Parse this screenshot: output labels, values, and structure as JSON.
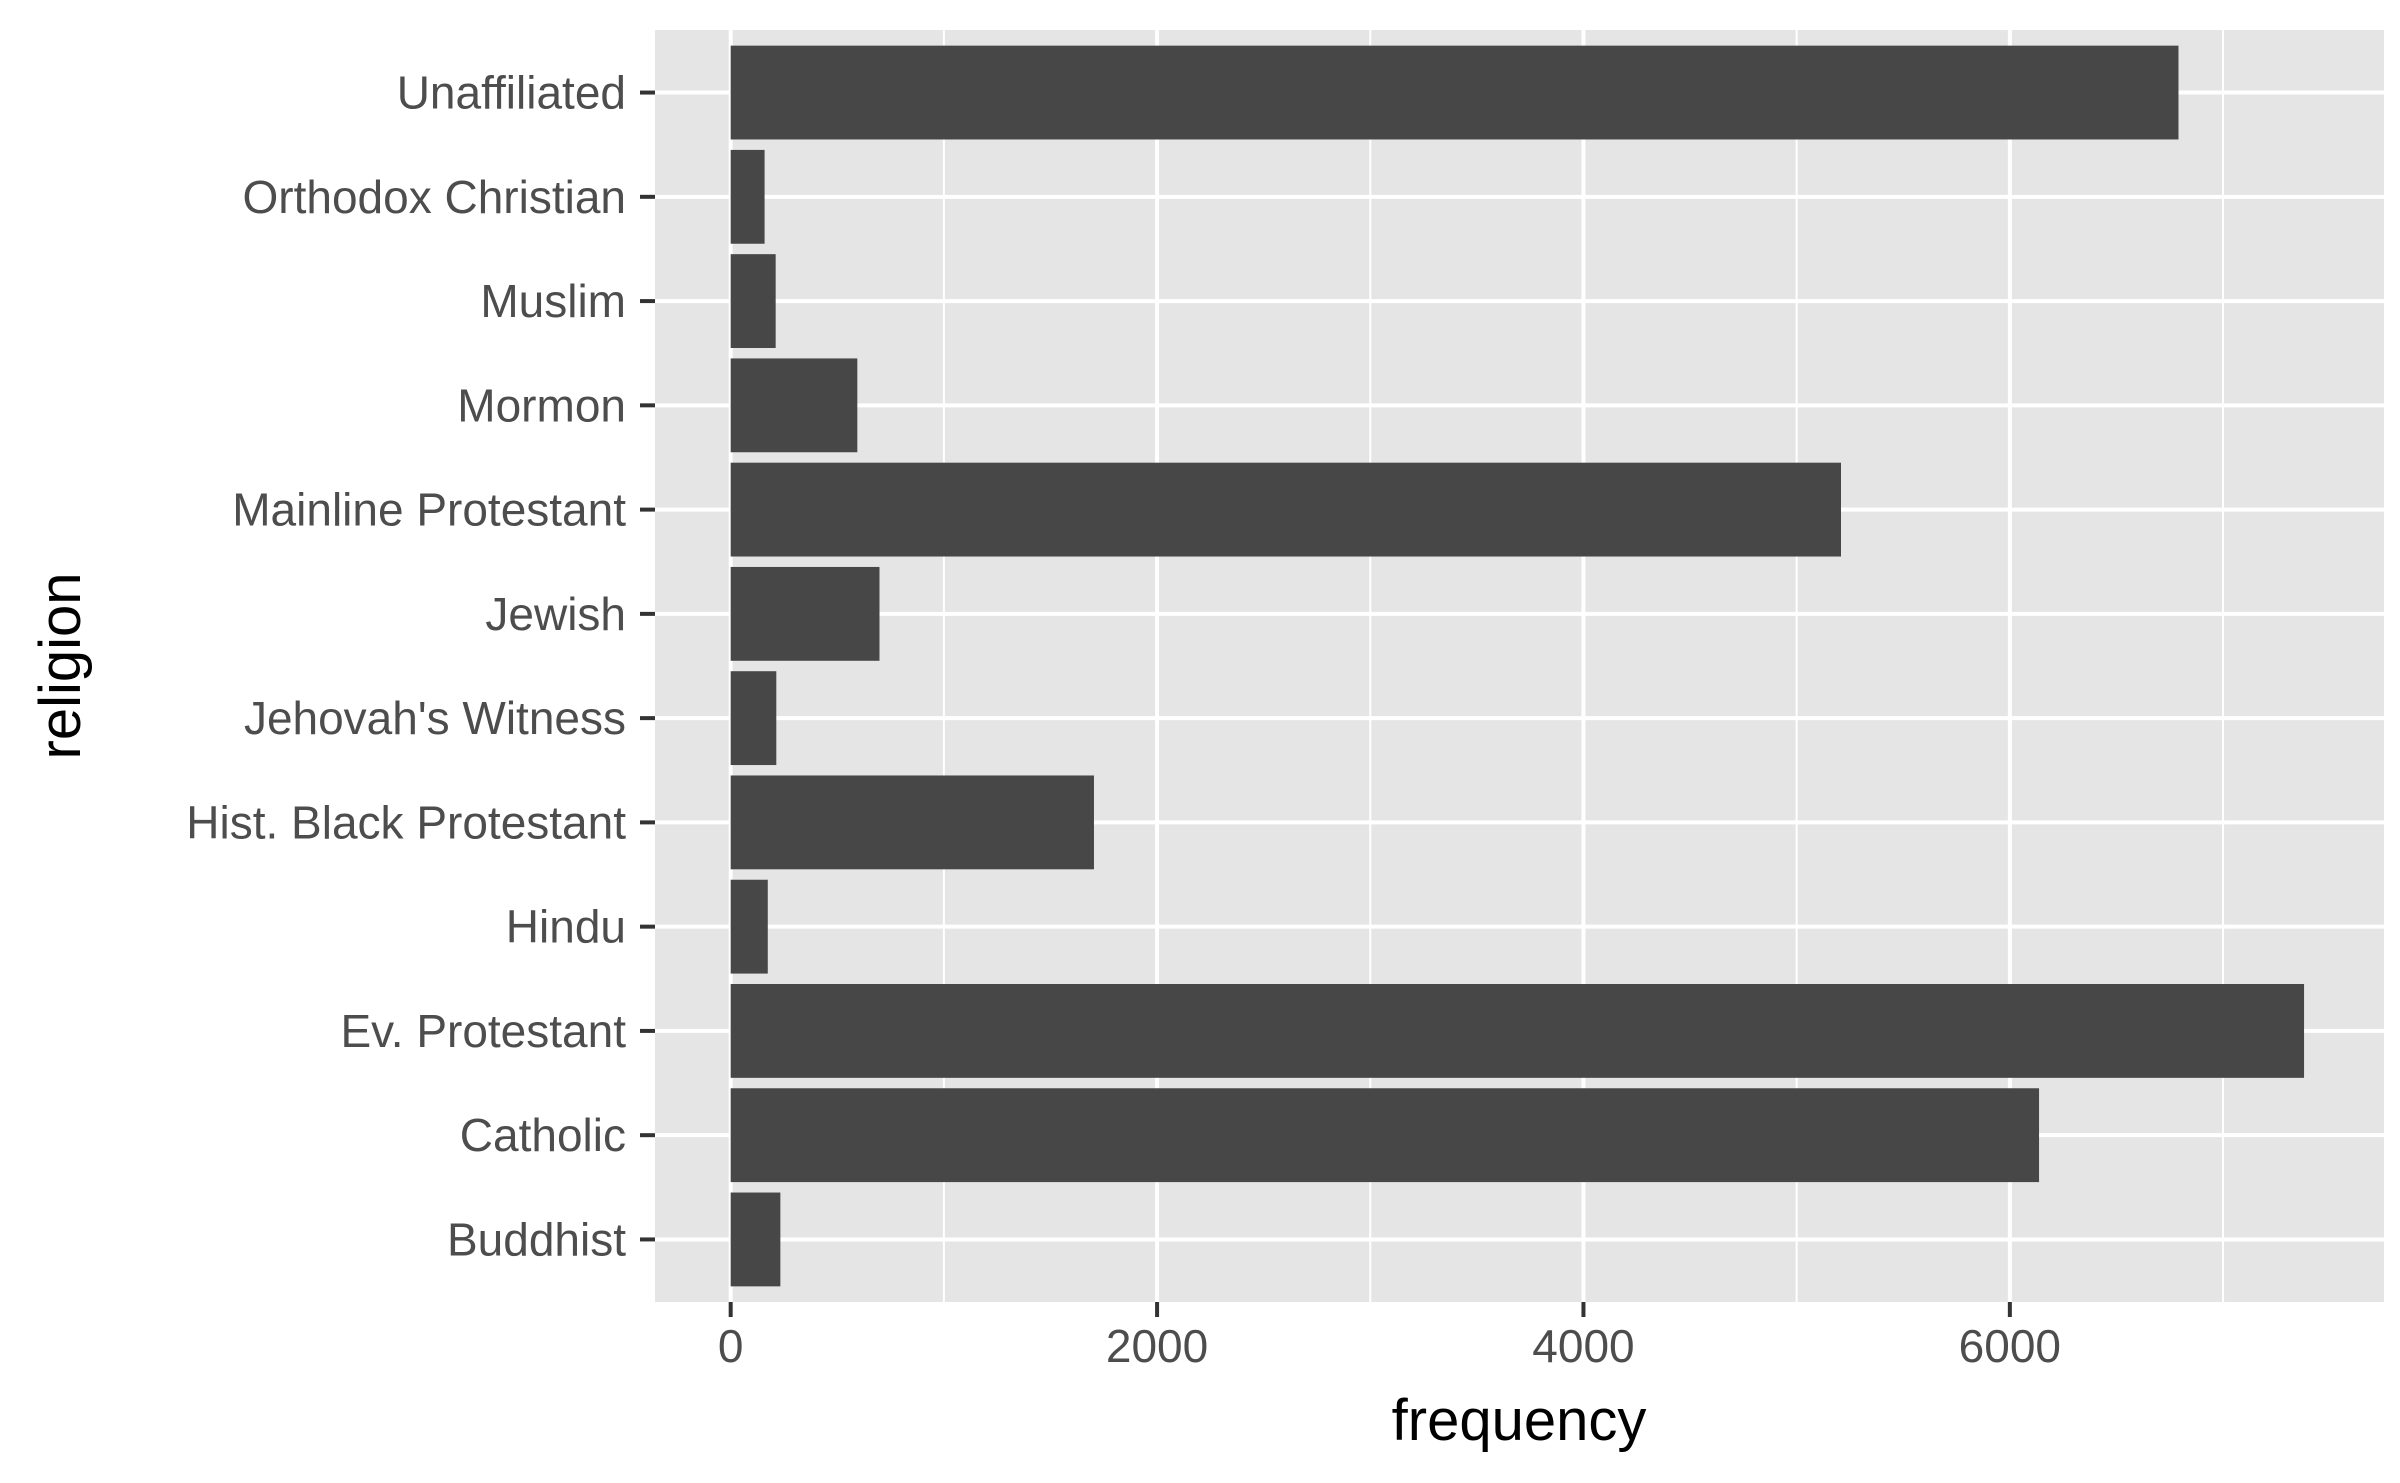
{
  "chart_data": {
    "type": "bar",
    "orientation": "horizontal",
    "categories": [
      "Buddhist",
      "Catholic",
      "Ev. Protestant",
      "Hindu",
      "Hist. Black Protestant",
      "Jehovah's Witness",
      "Jewish",
      "Mainline Protestant",
      "Mormon",
      "Muslim",
      "Orthodox Christian",
      "Unaffiliated"
    ],
    "values": [
      233,
      6137,
      7380,
      174,
      1704,
      214,
      698,
      5208,
      594,
      211,
      159,
      6791
    ],
    "xlabel": "frequency",
    "ylabel": "religion",
    "xlim": [
      -355,
      7755
    ],
    "x_ticks": [
      "0",
      "2000",
      "4000",
      "6000"
    ],
    "x_tick_values": [
      0,
      2000,
      4000,
      6000
    ],
    "grid": true,
    "colors": {
      "bar": "#474747",
      "panel": "#e5e5e5",
      "grid": "#ffffff",
      "tick_text": "#4d4d4d",
      "tick_mark": "#333333",
      "title_text": "#000000"
    }
  }
}
